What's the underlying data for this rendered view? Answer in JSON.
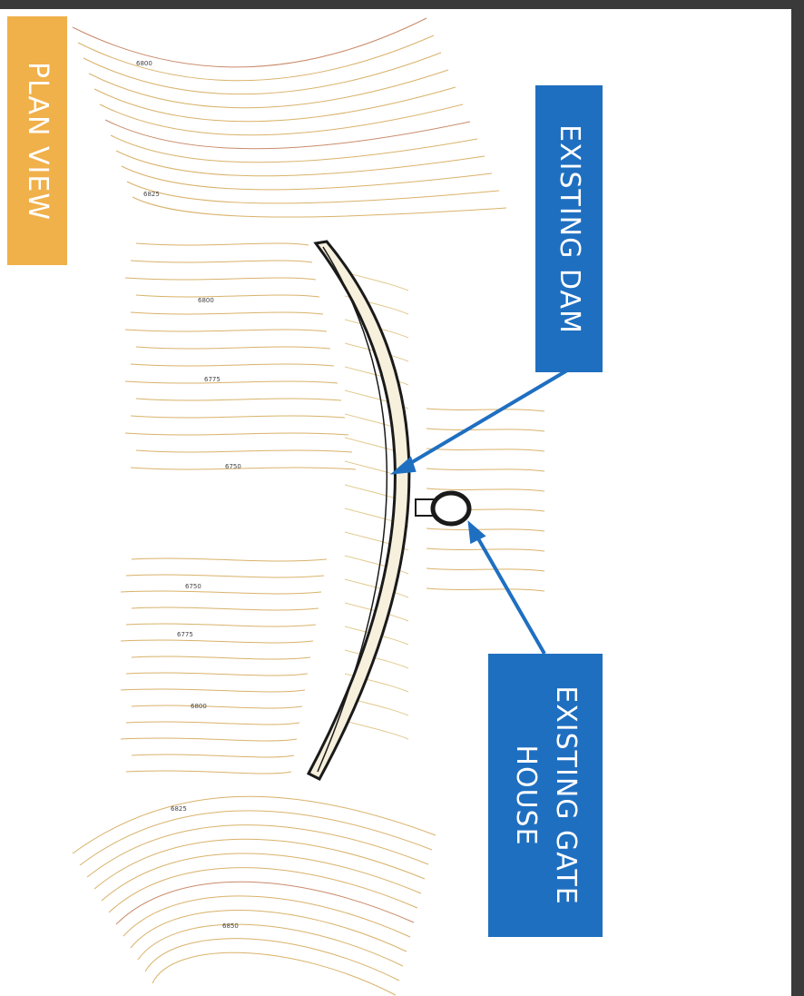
{
  "labels": {
    "plan_view": "PLAN VIEW",
    "existing_dam": "EXISTING DAM",
    "existing_gate_house": "EXISTING GATE\nHOUSE"
  },
  "contour_labels": [
    "6800",
    "6825",
    "6800",
    "6775",
    "6750",
    "6750",
    "6775",
    "6800",
    "6825",
    "6850"
  ],
  "colors": {
    "plan_tag": "#f0b04a",
    "callout": "#1f6fc1",
    "contour": "#d9b26a",
    "contour_strong": "#c98a6a",
    "dam_outline": "#1a1a1a",
    "dam_fill": "#f6f0dc"
  }
}
